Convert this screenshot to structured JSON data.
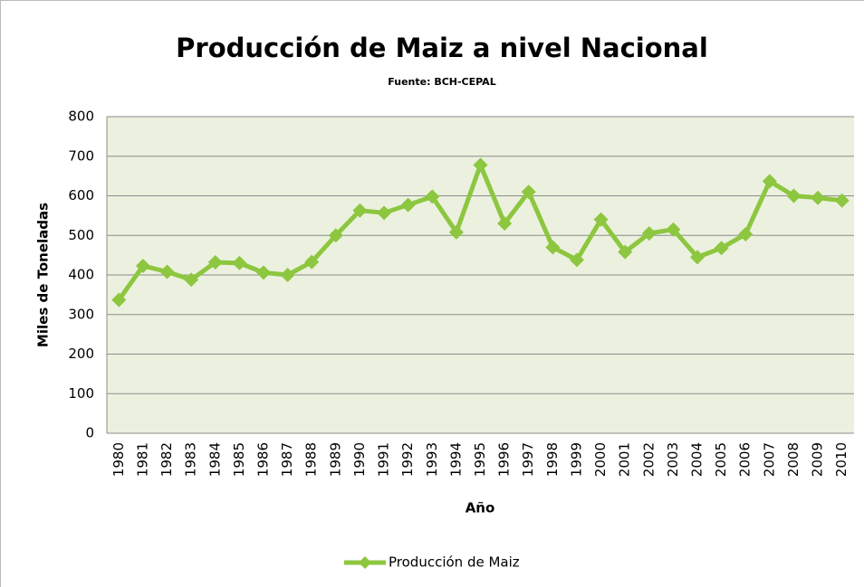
{
  "chart_data": {
    "type": "line",
    "title": "Producción de Maiz a nivel Nacional",
    "subtitle": "Fuente: BCH-CEPAL",
    "x_label": "Año",
    "y_label": "Miles de Toneladas",
    "categories": [
      "1980",
      "1981",
      "1982",
      "1983",
      "1984",
      "1985",
      "1986",
      "1987",
      "1988",
      "1989",
      "1990",
      "1991",
      "1992",
      "1993",
      "1994",
      "1995",
      "1996",
      "1997",
      "1998",
      "1999",
      "2000",
      "2001",
      "2002",
      "2003",
      "2004",
      "2005",
      "2006",
      "2007",
      "2008",
      "2009",
      "2010"
    ],
    "series": [
      {
        "name": "Producción de Maiz",
        "color": "#8dc63f",
        "values": [
          337,
          423,
          408,
          388,
          432,
          430,
          406,
          400,
          433,
          500,
          563,
          557,
          577,
          598,
          508,
          678,
          530,
          610,
          470,
          438,
          540,
          458,
          505,
          515,
          445,
          468,
          503,
          637,
          600,
          595,
          588
        ]
      }
    ],
    "ylim": [
      0,
      800
    ],
    "yticks": [
      0,
      100,
      200,
      300,
      400,
      500,
      600,
      700,
      800
    ],
    "grid": true,
    "legend": "bottom"
  }
}
